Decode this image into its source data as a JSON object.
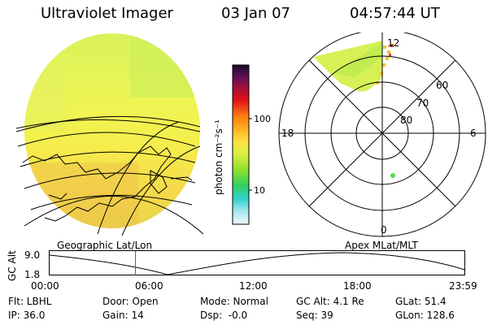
{
  "header": {
    "title": "Ultraviolet Imager",
    "date": "03 Jan 07",
    "time": "04:57:44 UT"
  },
  "colorbar": {
    "label": "photon cm⁻²s⁻¹",
    "tick_top": "100",
    "tick_bottom": "10"
  },
  "polar_plot": {
    "mlt_labels": {
      "top": "12",
      "left": "18",
      "right": "6",
      "bottom": "0"
    },
    "lat_labels": [
      "60",
      "70",
      "80"
    ]
  },
  "timeline": {
    "left_title": "Geographic Lat/Lon",
    "right_title": "Apex MLat/MLT",
    "axis_label": "GC Alt",
    "y_top": "9.0",
    "y_bottom": "1.8",
    "x_ticks": [
      "00:00",
      "06:00",
      "12:00",
      "18:00",
      "23:59"
    ],
    "current_time_fraction": 0.207
  },
  "info": {
    "filter": "Flt: LBHL",
    "ip": "IP: 36.0",
    "door": "Door: Open",
    "gain": "Gain: 14",
    "mode": "Mode: Normal",
    "dsp": "Dsp:  -0.0",
    "gc_alt": "GC Alt: 4.1 Re",
    "seq": "Seq: 39",
    "glat": "GLat: 51.4",
    "glon": "GLon: 128.6"
  }
}
